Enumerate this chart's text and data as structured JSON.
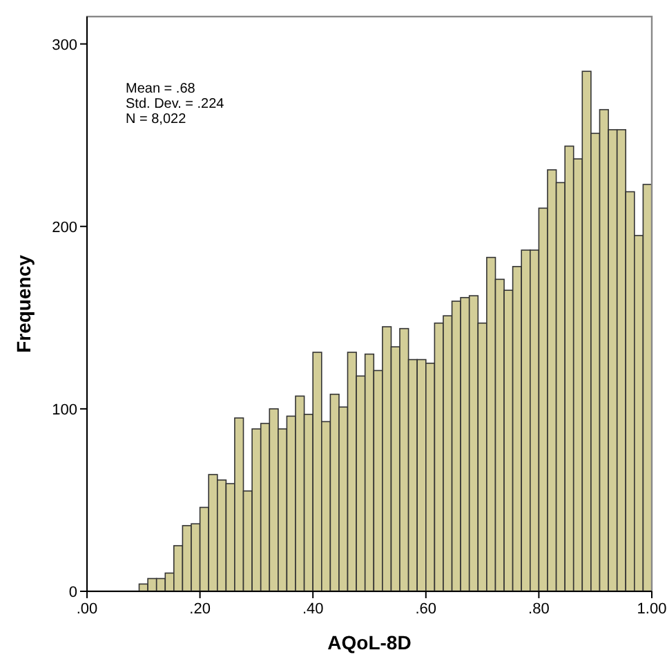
{
  "chart_data": {
    "type": "histogram",
    "xlabel": "AQoL-8D",
    "ylabel": "Frequency",
    "color": "#d3ce98",
    "annotations": [
      "Mean = .68",
      "Std. Dev. = .224",
      "N = 8,022"
    ],
    "bins": [
      0.0923,
      0.1077,
      0.1231,
      0.1385,
      0.1538,
      0.1692,
      0.1846,
      0.2,
      0.2154,
      0.2308,
      0.2462,
      0.2615,
      0.2769,
      0.2923,
      0.3077,
      0.3231,
      0.3385,
      0.3538,
      0.3692,
      0.3846,
      0.4,
      0.4154,
      0.4308,
      0.4462,
      0.4615,
      0.4769,
      0.4923,
      0.5077,
      0.5231,
      0.5385,
      0.5538,
      0.5692,
      0.5846,
      0.6,
      0.6154,
      0.6308,
      0.6462,
      0.6615,
      0.6769,
      0.6923,
      0.7077,
      0.7231,
      0.7385,
      0.7538,
      0.7692,
      0.7846,
      0.8,
      0.8154,
      0.8308,
      0.8462,
      0.8615,
      0.8769,
      0.8923,
      0.9077,
      0.9231,
      0.9385,
      0.9538,
      0.9692,
      0.9846,
      1.0
    ],
    "values": [
      4,
      7,
      7,
      10,
      25,
      36,
      37,
      46,
      64,
      61,
      59,
      95,
      55,
      89,
      92,
      100,
      89,
      96,
      107,
      97,
      131,
      93,
      108,
      101,
      131,
      118,
      130,
      121,
      145,
      134,
      144,
      127,
      127,
      125,
      147,
      151,
      159,
      161,
      162,
      147,
      183,
      171,
      165,
      178,
      187,
      187,
      210,
      231,
      224,
      244,
      237,
      285,
      251,
      264,
      253,
      253,
      219,
      195,
      223
    ],
    "xlim": [
      0,
      1
    ],
    "ylim": [
      0,
      315
    ],
    "xticks": [
      {
        "value": 0,
        "label": ".00"
      },
      {
        "value": 0.2,
        "label": ".20"
      },
      {
        "value": 0.4,
        "label": ".40"
      },
      {
        "value": 0.6,
        "label": ".60"
      },
      {
        "value": 0.8,
        "label": ".80"
      },
      {
        "value": 1,
        "label": "1.00"
      }
    ],
    "yticks": [
      0,
      100,
      200,
      300
    ],
    "grid": false
  }
}
